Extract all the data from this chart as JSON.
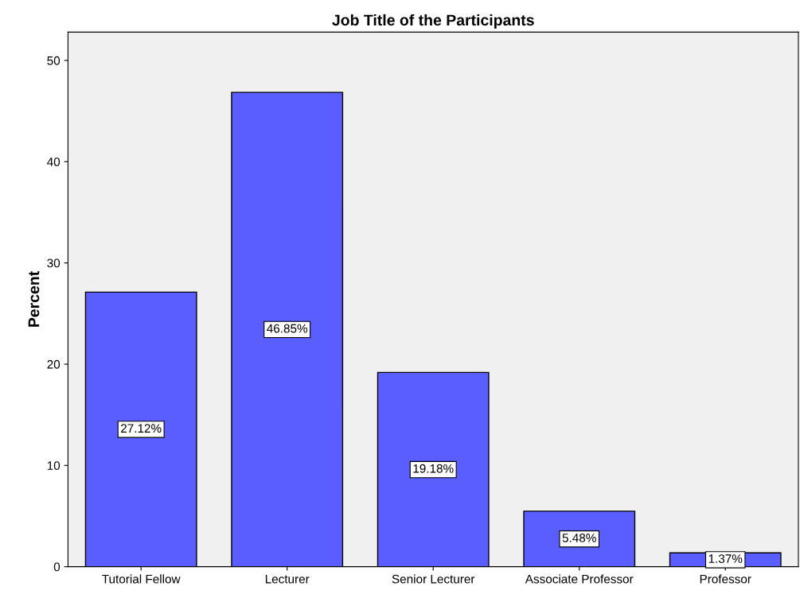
{
  "chart_data": {
    "type": "bar",
    "title": "Job Title of the Participants",
    "ylabel": "Percent",
    "categories": [
      "Tutorial Fellow",
      "Lecturer",
      "Senior Lecturer",
      "Associate Professor",
      "Professor"
    ],
    "values": [
      27.12,
      46.85,
      19.18,
      5.48,
      1.37
    ],
    "value_labels": [
      "27.12%",
      "46.85%",
      "19.18%",
      "5.48%",
      "1.37%"
    ],
    "color": "#5a5eff",
    "ylim": [
      0,
      52.8
    ],
    "yticks": [
      0,
      10,
      20,
      30,
      40,
      50
    ],
    "grid": false,
    "legend": false
  }
}
